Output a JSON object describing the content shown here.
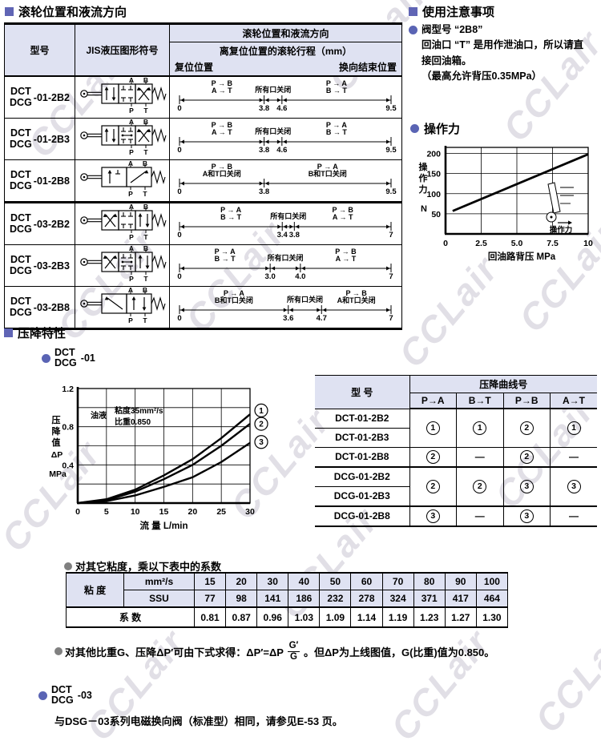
{
  "watermark": {
    "text": "CCLair"
  },
  "section_roller": {
    "title": "滚轮位置和液流方向",
    "table": {
      "col_model": "型号",
      "col_symbol": "JIS液压图形符号",
      "header_top": "滚轮位置和液流方向",
      "header_mid": "离复位位置的滚轮行程（mm）",
      "header_left": "复位位置",
      "header_right": "换向结束位置",
      "ports": {
        "top": [
          "A",
          "B"
        ],
        "bottom": [
          "P",
          "T"
        ]
      },
      "rows": [
        {
          "model_top": "DCT",
          "model_bottom": "DCG",
          "suffix": "-01-2B2",
          "symbol": "s01_2b2",
          "ticks": [
            "0",
            "3.8",
            "4.6",
            "9.5"
          ],
          "segs": [
            {
              "lines": [
                "P → B",
                "A → T"
              ]
            },
            {
              "lines": [
                "所有口关闭"
              ]
            },
            {
              "lines": [
                "P → A",
                "B → T"
              ]
            }
          ]
        },
        {
          "model_top": "DCT",
          "model_bottom": "DCG",
          "suffix": "-01-2B3",
          "symbol": "s01_2b3",
          "ticks": [
            "0",
            "3.8",
            "4.6",
            "9.5"
          ],
          "segs": [
            {
              "lines": [
                "P → B",
                "A → T"
              ]
            },
            {
              "lines": [
                "所有口关闭"
              ]
            },
            {
              "lines": [
                "P → A",
                "B → T"
              ]
            }
          ]
        },
        {
          "model_top": "DCT",
          "model_bottom": "DCG",
          "suffix": "-01-2B8",
          "symbol": "s01_2b8",
          "ticks": [
            "0",
            "3.8",
            "9.5"
          ],
          "segs": [
            {
              "lines": [
                "P → B",
                "A和T口关闭"
              ]
            },
            {
              "lines": [
                "P → A",
                "B和T口关闭"
              ]
            }
          ]
        },
        {
          "model_top": "DCT",
          "model_bottom": "DCG",
          "suffix": "-03-2B2",
          "symbol": "s03_2b2",
          "ticks": [
            "0",
            "3.4",
            "3.8",
            "7"
          ],
          "segs": [
            {
              "lines": [
                "P → A",
                "B → T"
              ]
            },
            {
              "lines": [
                "所有口关闭"
              ]
            },
            {
              "lines": [
                "P → B",
                "A → T"
              ]
            }
          ]
        },
        {
          "model_top": "DCT",
          "model_bottom": "DCG",
          "suffix": "-03-2B3",
          "symbol": "s03_2b3",
          "ticks": [
            "0",
            "3.0",
            "4.0",
            "7"
          ],
          "segs": [
            {
              "lines": [
                "P → A",
                "B → T"
              ]
            },
            {
              "lines": [
                "所有口关闭"
              ]
            },
            {
              "lines": [
                "P → B",
                "A → T"
              ]
            }
          ]
        },
        {
          "model_top": "DCT",
          "model_bottom": "DCG",
          "suffix": "-03-2B8",
          "symbol": "s03_2b8",
          "ticks": [
            "0",
            "3.6",
            "4.7",
            "7"
          ],
          "segs": [
            {
              "lines": [
                "P → A",
                "B和T口关闭"
              ]
            },
            {
              "lines": [
                "所有口关闭"
              ]
            },
            {
              "lines": [
                "P → B",
                "A和T口关闭"
              ]
            }
          ]
        }
      ]
    }
  },
  "section_notes": {
    "title": "使用注意事项",
    "bullet_title": "阀型号 “2B8”",
    "line1": "回油口 “T” 是用作泄油口，所以请直",
    "line2": "接回油箱。",
    "line3": "（最高允许背压0.35MPa）"
  },
  "section_force": {
    "title": "操作力",
    "inset_label": "操作力"
  },
  "section_drop": {
    "title": "压降特性",
    "sub_top": "DCT",
    "sub_bottom": "DCG",
    "sub_suffix": "-01",
    "curve_table": {
      "col_model": "型 号",
      "header": "压降曲线号",
      "cols": [
        "P→A",
        "B→T",
        "P→B",
        "A→T"
      ],
      "groups": [
        {
          "models": [
            "DCT-01-2B2",
            "DCT-01-2B3"
          ],
          "values": [
            "1",
            "1",
            "2",
            "1"
          ]
        },
        {
          "models": [
            "DCT-01-2B8"
          ],
          "values": [
            "2",
            "—",
            "2",
            "—"
          ]
        },
        {
          "models": [
            "DCG-01-2B2",
            "DCG-01-2B3"
          ],
          "values": [
            "2",
            "2",
            "3",
            "3"
          ]
        },
        {
          "models": [
            "DCG-01-2B8"
          ],
          "values": [
            "3",
            "—",
            "3",
            "—"
          ]
        }
      ]
    },
    "visc_note": "对其它粘度，乘以下表中的系数",
    "visc_table": {
      "row_label": "粘 度",
      "unit1": "mm²/s",
      "unit2": "SSU",
      "mm2s": [
        "15",
        "20",
        "30",
        "40",
        "50",
        "60",
        "70",
        "80",
        "90",
        "100"
      ],
      "ssu": [
        "77",
        "98",
        "141",
        "186",
        "232",
        "278",
        "324",
        "371",
        "417",
        "464"
      ],
      "coef_label": "系 数",
      "coef": [
        "0.81",
        "0.87",
        "0.96",
        "1.03",
        "1.09",
        "1.14",
        "1.19",
        "1.23",
        "1.27",
        "1.30"
      ]
    },
    "gravity_note_pre": "对其他比重G、压降ΔP′可由下式求得：ΔP′=ΔP",
    "frac_top": "G′",
    "frac_bottom": "G",
    "gravity_note_post": "。但ΔP为上线图值，G(比重)值为0.850。"
  },
  "section_03": {
    "sub_top": "DCT",
    "sub_bottom": "DCG",
    "sub_suffix": "-03",
    "text": "与DSG－03系列电磁换向阀（标准型）相同，请参见E-53 页。"
  },
  "chart_data": [
    {
      "type": "line",
      "title": "操作力",
      "xlabel": "回油路背压  MPa",
      "ylabel_chars": [
        "操",
        "作",
        "力"
      ],
      "yunit": "N",
      "xlim": [
        0,
        10
      ],
      "ylim": [
        0,
        215
      ],
      "xticks": [
        "0",
        "2.5",
        "5.0",
        "7.5",
        "10"
      ],
      "xtick_vals": [
        0,
        2.5,
        5,
        7.5,
        10
      ],
      "yticks": [
        50,
        100,
        150,
        200
      ],
      "grid": true,
      "series": [
        {
          "name": "操作力",
          "x": [
            0.5,
            10
          ],
          "y": [
            57,
            198
          ]
        }
      ]
    },
    {
      "type": "line",
      "title": "压降特性 DCT/DCG-01",
      "xlabel": "流 量  L/min",
      "ylabel_chars": [
        "压",
        "降",
        "值"
      ],
      "ylabel2": "ΔP",
      "yunit": "MPa",
      "ann_left": "油液",
      "ann_line1": "粘度35mm²/s",
      "ann_line2": "比重0.850",
      "xlim": [
        0,
        30
      ],
      "ylim": [
        0,
        1.2
      ],
      "xticks": [
        "0",
        "5",
        "10",
        "15",
        "20",
        "25",
        "30"
      ],
      "xtick_vals": [
        0,
        5,
        10,
        15,
        20,
        25,
        30
      ],
      "yticks": [
        "0.4",
        "0.8",
        "1.2"
      ],
      "ytick_vals": [
        0.4,
        0.8,
        1.2
      ],
      "grid": true,
      "legend_position": "right",
      "series": [
        {
          "name": "1",
          "x": [
            0,
            5,
            10,
            15,
            20,
            25,
            30
          ],
          "y": [
            0,
            0.04,
            0.14,
            0.29,
            0.46,
            0.68,
            0.93
          ],
          "label_y": 0.97
        },
        {
          "name": "2",
          "x": [
            0,
            5,
            10,
            15,
            20,
            25,
            30
          ],
          "y": [
            0,
            0.03,
            0.12,
            0.25,
            0.4,
            0.6,
            0.83
          ],
          "label_y": 0.83
        },
        {
          "name": "3",
          "x": [
            0,
            5,
            10,
            15,
            20,
            25,
            30
          ],
          "y": [
            0,
            0.02,
            0.08,
            0.17,
            0.27,
            0.43,
            0.63
          ],
          "label_y": 0.64
        }
      ]
    }
  ]
}
